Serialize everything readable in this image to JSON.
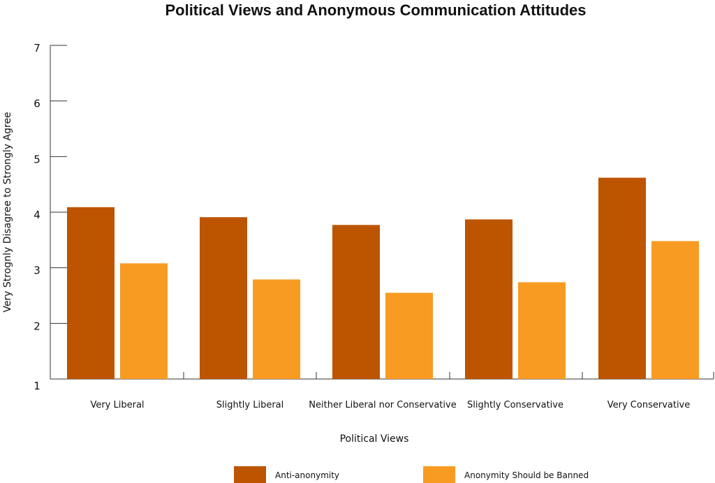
{
  "chart_data": {
    "type": "bar",
    "title": "Political Views and Anonymous Communication Attitudes",
    "xlabel": "Political Views",
    "ylabel": "Very Strognly Disagree to Strongly Agree",
    "ylim": [
      1,
      7
    ],
    "yticks": [
      1,
      2,
      3,
      4,
      5,
      6,
      7
    ],
    "grid": false,
    "legend_position": "bottom",
    "categories": [
      "Very Liberal",
      "Slightly Liberal",
      "Neither Liberal nor Conservative",
      "Slightly Conservative",
      "Very Conservative"
    ],
    "series": [
      {
        "name": "Anti-anonymity",
        "color": "#bd5400",
        "values": [
          4.09,
          3.91,
          3.77,
          3.87,
          4.62
        ]
      },
      {
        "name": "Anonymity Should be Banned",
        "color": "#f89b22",
        "values": [
          3.08,
          2.79,
          2.55,
          2.74,
          3.48
        ]
      }
    ]
  }
}
